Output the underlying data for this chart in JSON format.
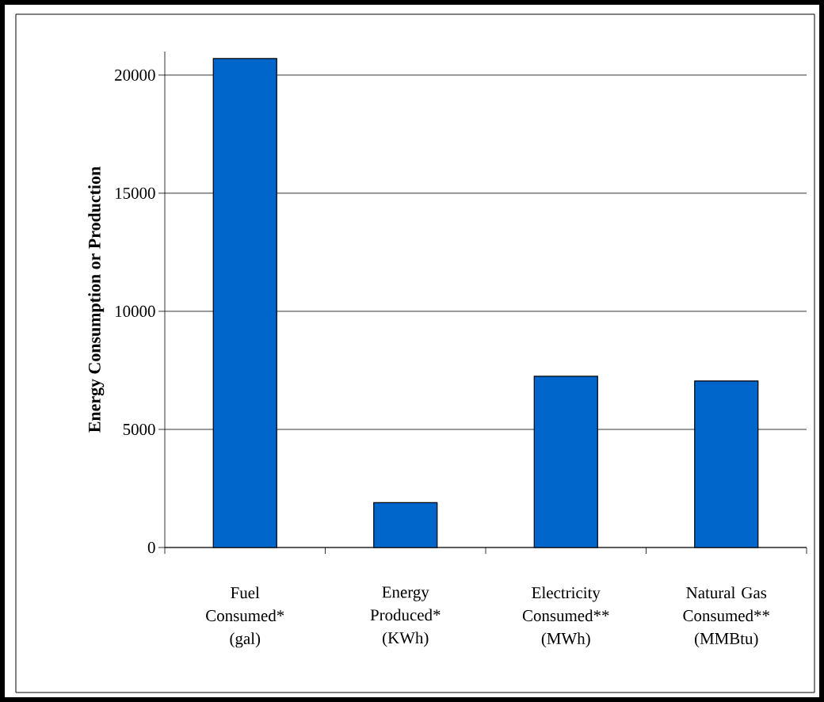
{
  "chart_data": {
    "type": "bar",
    "ylabel": "Energy Consumption or Production",
    "categories": [
      "Fuel Consumed* (gal)",
      "Energy Produced* (KWh)",
      "Electricity Consumed** (MWh)",
      "Natural Gas Consumed** (MMBtu)"
    ],
    "values": [
      20700,
      1900,
      7250,
      7050
    ],
    "color": "#0066cc",
    "ylim": [
      0,
      21000
    ],
    "yticks": [
      0,
      5000,
      10000,
      15000,
      20000
    ],
    "grid": "y"
  }
}
